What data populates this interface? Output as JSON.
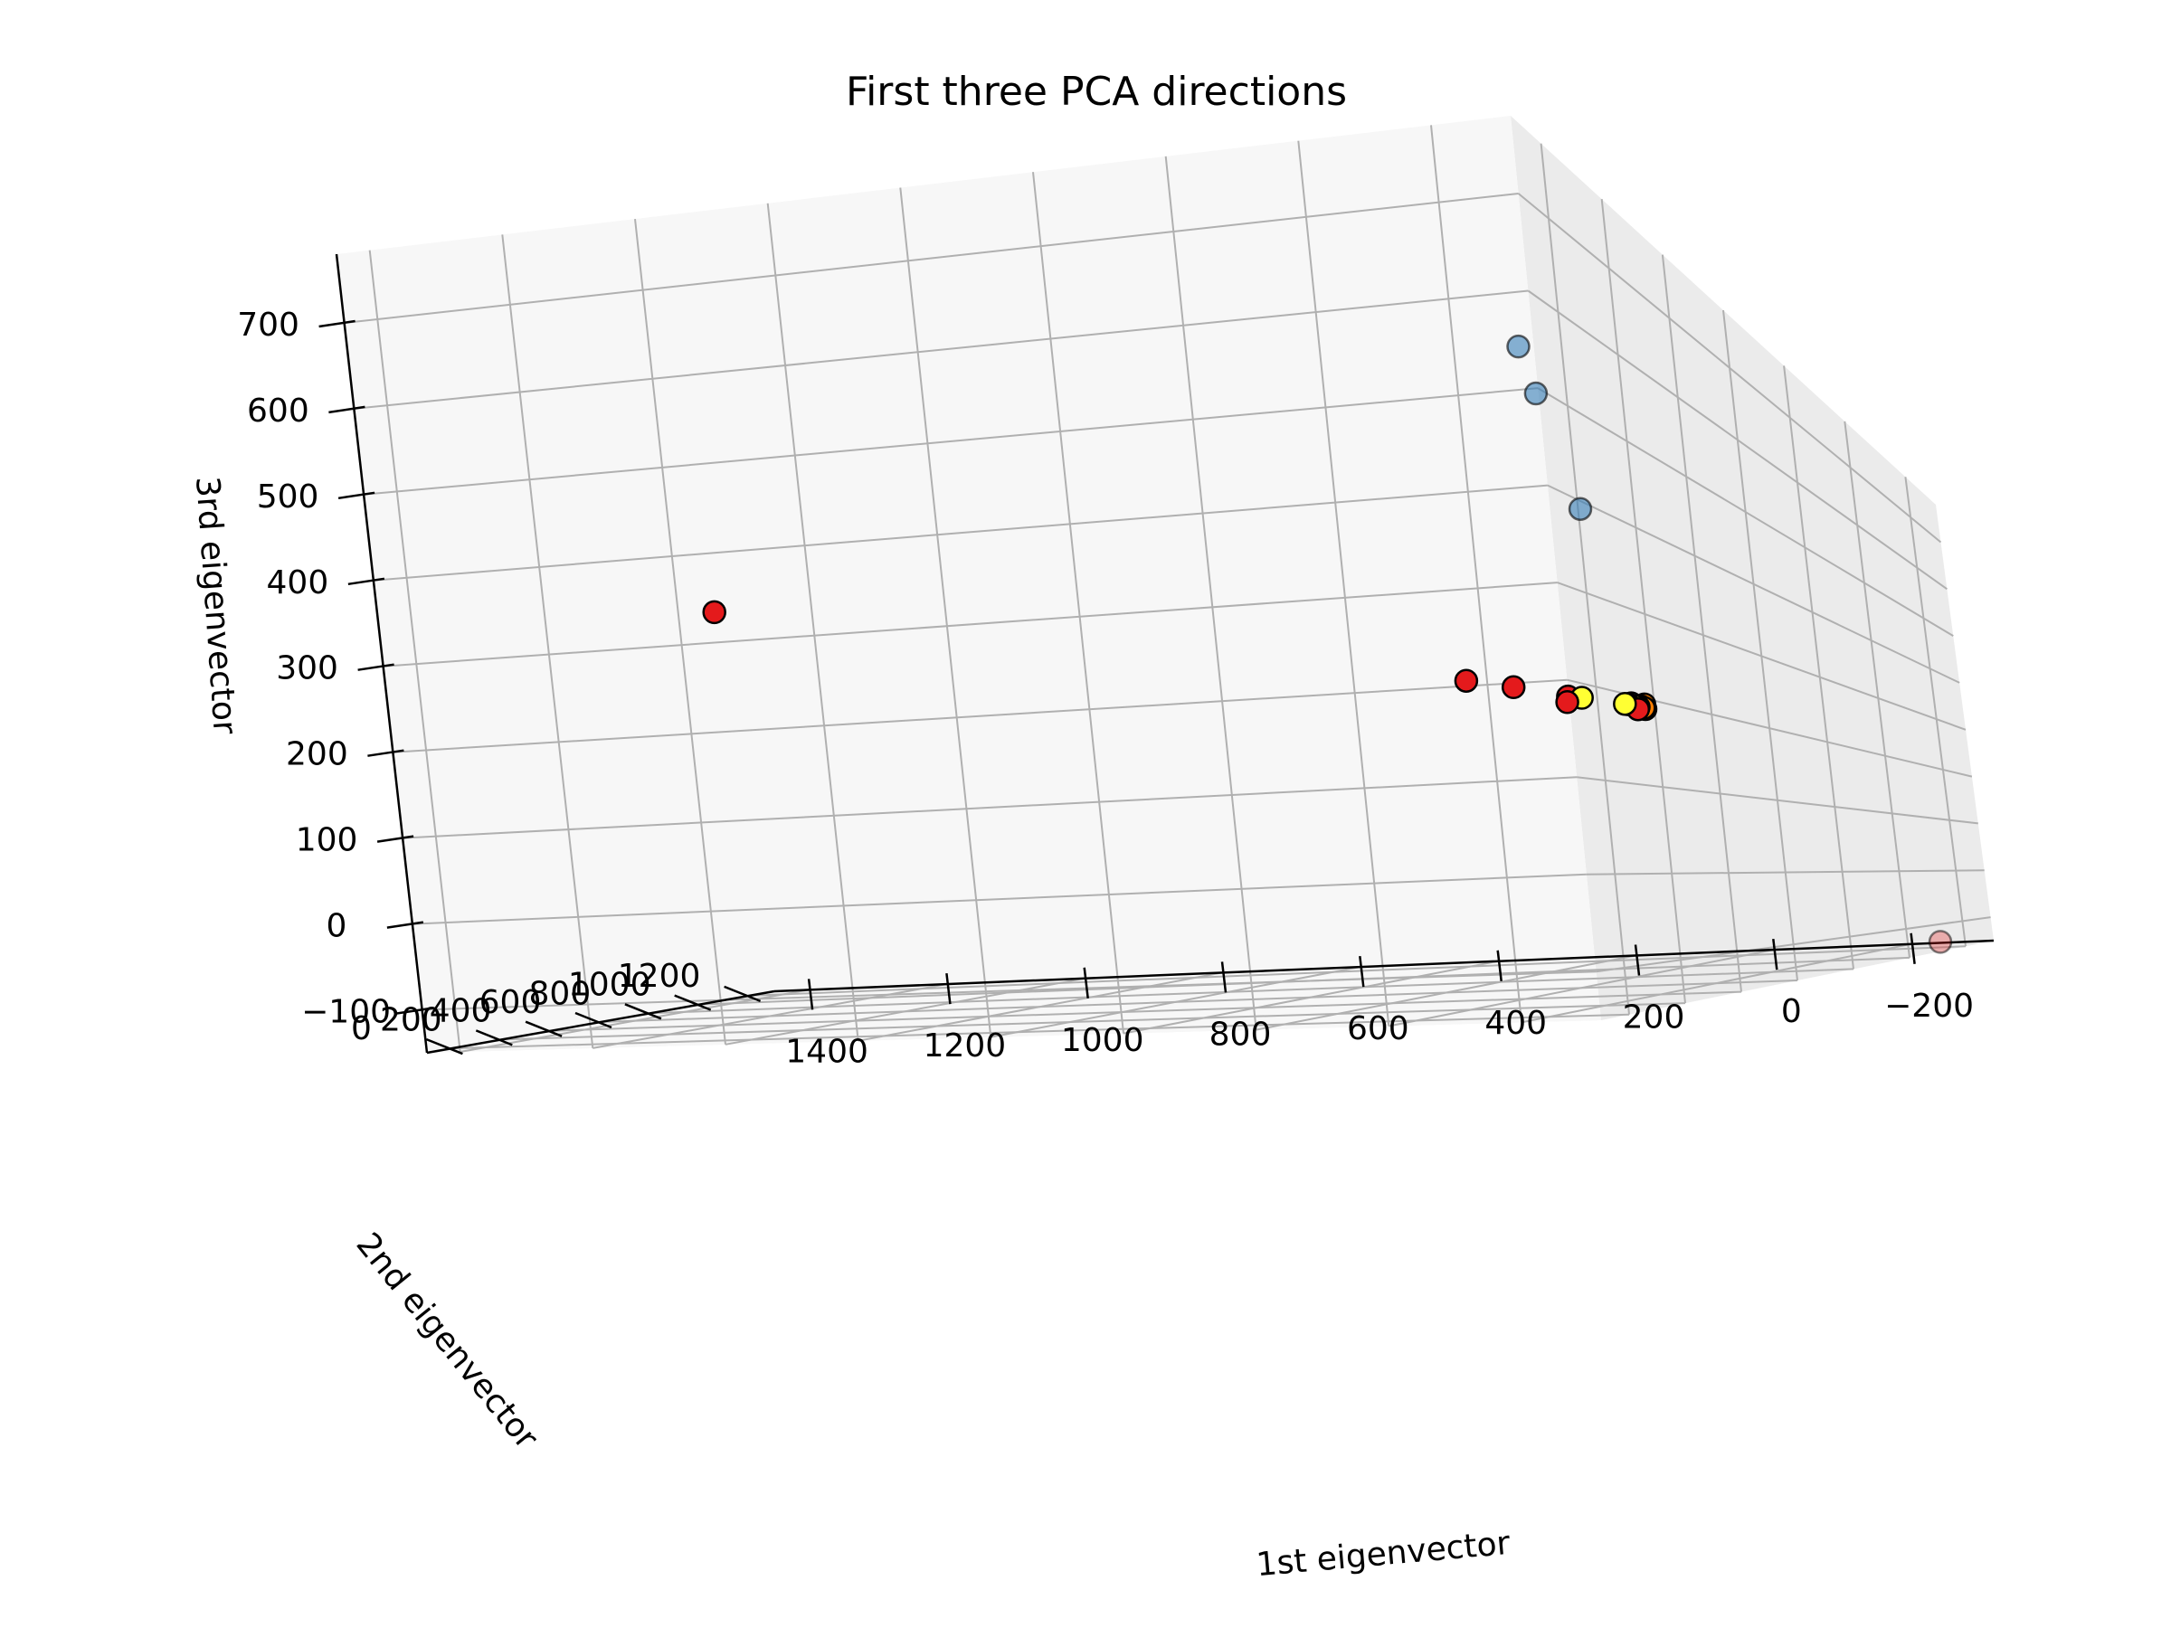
{
  "chart_data": {
    "type": "scatter",
    "projection": "3d",
    "title": "First three PCA directions",
    "xlabel": "1st eigenvector",
    "ylabel": "2nd eigenvector",
    "zlabel": "3rd eigenvector",
    "xlim": [
      -320,
      1450
    ],
    "ylim": [
      -100,
      1300
    ],
    "zlim": [
      -150,
      780
    ],
    "z_axis_inverted": true,
    "grid": true,
    "legend": "none",
    "xticks": [
      -200,
      0,
      200,
      400,
      600,
      800,
      1000,
      1200,
      1400
    ],
    "xtick_labels": [
      "−200",
      "0",
      "200",
      "400",
      "600",
      "800",
      "1000",
      "1200",
      "1400"
    ],
    "yticks": [
      0,
      200,
      400,
      600,
      800,
      1000,
      1200
    ],
    "ytick_labels": [
      "0",
      "200",
      "400",
      "600",
      "800",
      "1000",
      "1200"
    ],
    "zticks": [
      -100,
      0,
      100,
      200,
      300,
      400,
      500,
      600,
      700
    ],
    "ztick_labels": [
      "−100",
      "0",
      "100",
      "200",
      "300",
      "400",
      "500",
      "600",
      "700"
    ],
    "colors": {
      "red": "#e41a1c",
      "blue": "#377eb8",
      "orange": "#ff7f00",
      "yellow": "#ffff33",
      "gray": "#999999",
      "edge": "#000000"
    },
    "points": [
      {
        "x": -280,
        "y": 1210,
        "z": -140,
        "color": "red",
        "opacity": 0.3
      },
      {
        "x": 1080,
        "y": 260,
        "z": 390,
        "color": "red"
      },
      {
        "x": 140,
        "y": 660,
        "z": 300,
        "color": "red"
      },
      {
        "x": 80,
        "y": 680,
        "z": 290,
        "color": "red"
      },
      {
        "x": 20,
        "y": 720,
        "z": 270,
        "color": "red"
      },
      {
        "x": 10,
        "y": 700,
        "z": 275,
        "color": "red"
      },
      {
        "x": -60,
        "y": 740,
        "z": 265,
        "color": "red"
      },
      {
        "x": -70,
        "y": 750,
        "z": 258,
        "color": "red"
      },
      {
        "x": -75,
        "y": 748,
        "z": 262,
        "color": "orange"
      },
      {
        "x": -78,
        "y": 752,
        "z": 260,
        "color": "orange"
      },
      {
        "x": -82,
        "y": 745,
        "z": 264,
        "color": "orange"
      },
      {
        "x": -65,
        "y": 740,
        "z": 266,
        "color": "blue"
      },
      {
        "x": -72,
        "y": 748,
        "z": 261,
        "color": "blue"
      },
      {
        "x": 0,
        "y": 725,
        "z": 276,
        "color": "yellow"
      },
      {
        "x": -55,
        "y": 742,
        "z": 266,
        "color": "yellow"
      },
      {
        "x": -68,
        "y": 746,
        "z": 262,
        "color": "yellow"
      },
      {
        "x": -80,
        "y": 752,
        "z": 258,
        "color": "gray"
      },
      {
        "x": -40,
        "y": 700,
        "z": 550,
        "color": "blue",
        "opacity": 0.6
      },
      {
        "x": -30,
        "y": 610,
        "z": 690,
        "color": "blue",
        "opacity": 0.6
      },
      {
        "x": -20,
        "y": 590,
        "z": 750,
        "color": "blue",
        "opacity": 0.6
      }
    ]
  }
}
